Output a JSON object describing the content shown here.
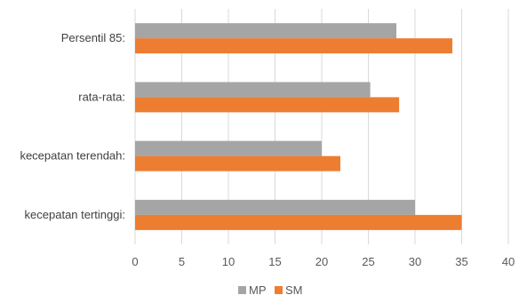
{
  "chart_data": {
    "type": "bar",
    "orientation": "horizontal",
    "categories": [
      "Persentil 85:",
      "rata-rata:",
      "kecepatan terendah:",
      "kecepatan tertinggi:"
    ],
    "series": [
      {
        "name": "MP",
        "values": [
          28,
          25.2,
          20,
          30
        ]
      },
      {
        "name": "SM",
        "values": [
          34,
          28.3,
          22,
          35
        ]
      }
    ],
    "xlim": [
      0,
      40
    ],
    "xticks": [
      "0",
      "5",
      "10",
      "15",
      "20",
      "25",
      "30",
      "35",
      "40"
    ],
    "grid": true,
    "legend_position": "bottom",
    "colors": {
      "MP": "#a5a5a5",
      "SM": "#ed7d31"
    }
  }
}
